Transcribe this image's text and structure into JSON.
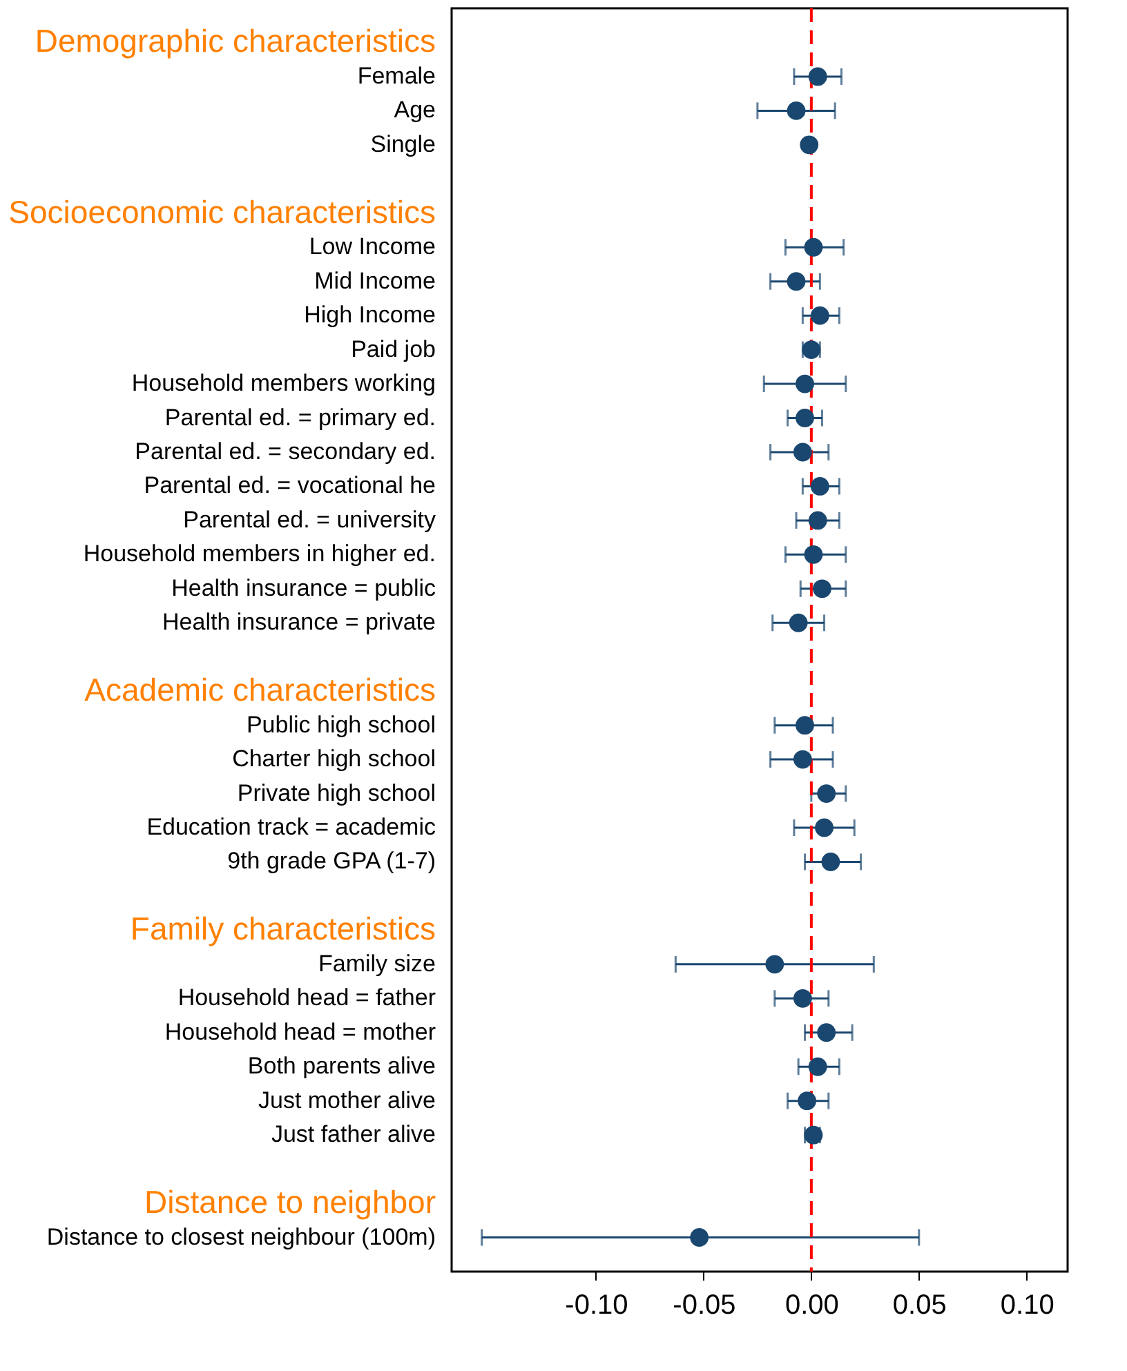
{
  "chart_data": {
    "type": "scatter",
    "orientation": "horizontal",
    "categories": [
      "Demographic characteristics",
      "Female",
      "Age",
      "Single",
      null,
      "Socioeconomic characteristics",
      "Low Income",
      "Mid Income",
      "High Income",
      "Paid job",
      "Household members working",
      "Parental ed. = primary ed.",
      "Parental ed. = secondary ed.",
      "Parental ed. = vocational he",
      "Parental ed. = university",
      "Household members in higher ed.",
      "Health insurance = public",
      "Health insurance = private",
      null,
      "Academic characteristics",
      "Public high school",
      "Charter high school",
      "Private high school",
      "Education track = academic",
      "9th grade GPA (1-7)",
      null,
      "Family characteristics",
      "Family size",
      "Household head = father",
      "Household head = mother",
      "Both parents alive",
      "Just mother alive",
      "Just father alive",
      null,
      "Distance to neighbor",
      "Distance to closest neighbour (100m)"
    ],
    "series": [
      {
        "color": "#1a476f",
        "values": [
          null,
          0.003,
          -0.007,
          -0.001,
          null,
          null,
          0.001,
          -0.007,
          0.004,
          0.0,
          -0.003,
          -0.003,
          -0.004,
          0.004,
          0.003,
          0.001,
          0.005,
          -0.006,
          null,
          null,
          -0.003,
          -0.004,
          0.007,
          0.006,
          0.009,
          null,
          null,
          -0.017,
          -0.004,
          0.007,
          0.003,
          -0.002,
          0.001,
          null,
          null,
          -0.052
        ],
        "errors": [
          null,
          [
            -0.008,
            0.014
          ],
          [
            -0.025,
            0.011
          ],
          [
            -0.003,
            0.001
          ],
          null,
          null,
          [
            -0.012,
            0.015
          ],
          [
            -0.019,
            0.004
          ],
          [
            -0.004,
            0.013
          ],
          [
            -0.004,
            0.004
          ],
          [
            -0.022,
            0.016
          ],
          [
            -0.011,
            0.005
          ],
          [
            -0.019,
            0.008
          ],
          [
            -0.004,
            0.013
          ],
          [
            -0.007,
            0.013
          ],
          [
            -0.012,
            0.016
          ],
          [
            -0.005,
            0.016
          ],
          [
            -0.018,
            0.006
          ],
          null,
          null,
          [
            -0.017,
            0.01
          ],
          [
            -0.019,
            0.01
          ],
          [
            0.0,
            0.016
          ],
          [
            -0.008,
            0.02
          ],
          [
            -0.003,
            0.023
          ],
          null,
          null,
          [
            -0.063,
            0.029
          ],
          [
            -0.017,
            0.008
          ],
          [
            -0.003,
            0.019
          ],
          [
            -0.006,
            0.013
          ],
          [
            -0.011,
            0.008
          ],
          [
            -0.003,
            0.004
          ],
          null,
          null,
          [
            -0.153,
            0.05
          ]
        ]
      }
    ],
    "xlim": [
      -0.167,
      0.119
    ],
    "xticks": [
      {
        "value": -0.1,
        "label": "-0.10"
      },
      {
        "value": -0.05,
        "label": "-0.05"
      },
      {
        "value": 0,
        "label": "0.00"
      },
      {
        "value": 0.05,
        "label": "0.05"
      },
      {
        "value": 0.1,
        "label": "0.10"
      }
    ],
    "ref_lines": [
      {
        "axis": "x",
        "value": 0,
        "color": "#ff0000",
        "line_style": "dashed"
      }
    ],
    "marker": "circle",
    "grid": false
  }
}
